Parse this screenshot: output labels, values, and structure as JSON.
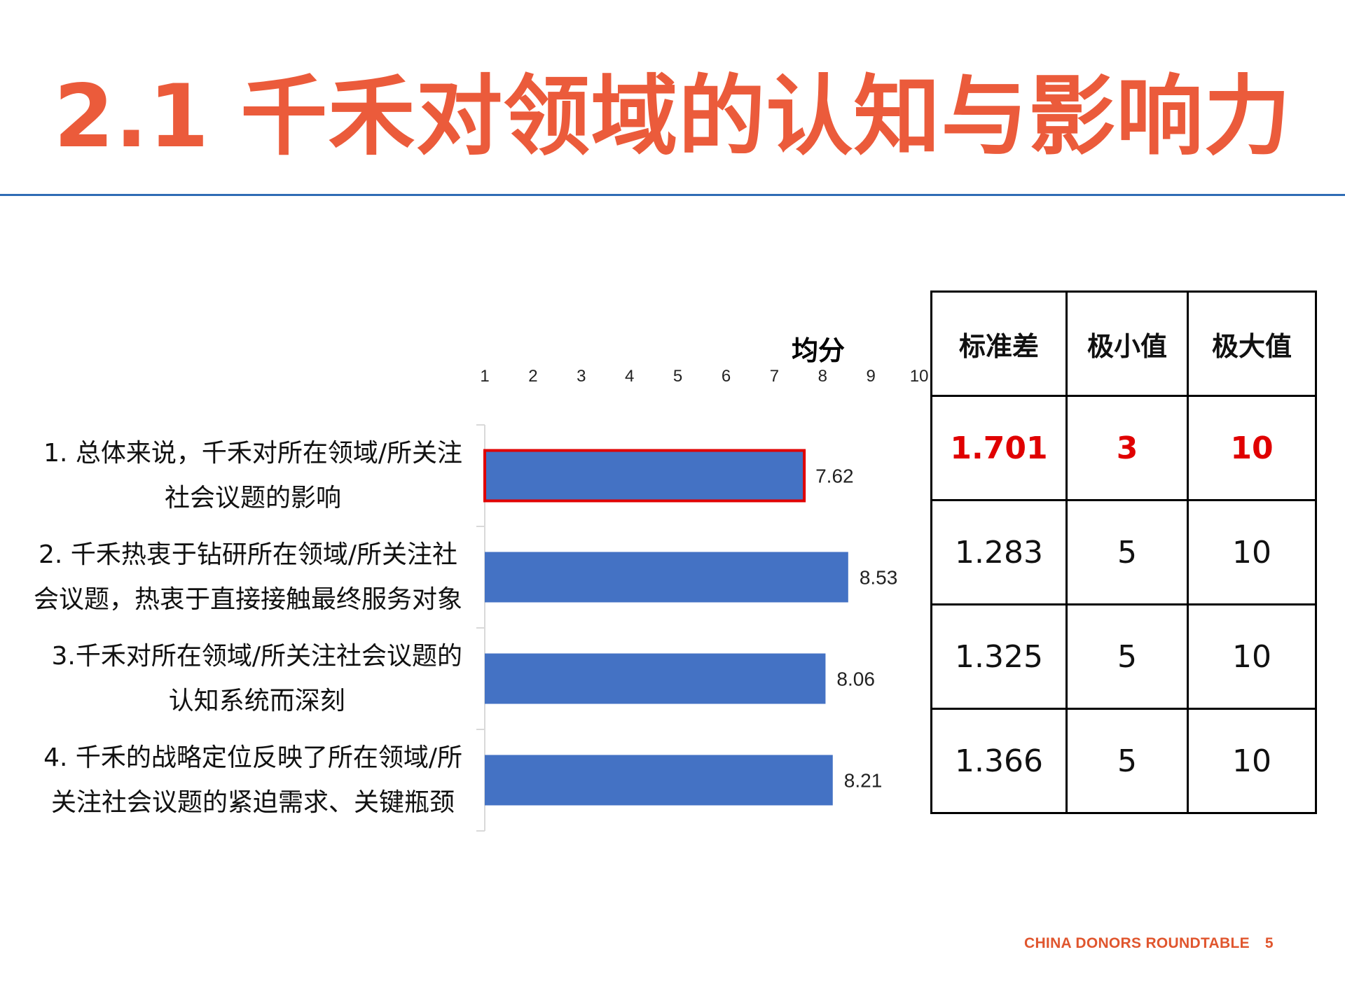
{
  "slide": {
    "title": "2.1 千禾对领域的认知与影响力",
    "footer_brand": "CHINA DONORS ROUNDTABLE",
    "page_number": "5"
  },
  "colors": {
    "title": "#EB5B3B",
    "rule": "#2F6CB5",
    "bar": "#4472C4",
    "highlight": "#E00000",
    "footer": "#E0562E"
  },
  "chart_data": {
    "type": "bar",
    "orientation": "horizontal",
    "title": "均分",
    "xlim": [
      1,
      10
    ],
    "ticks": [
      "1",
      "2",
      "3",
      "4",
      "5",
      "6",
      "7",
      "8",
      "9",
      "10"
    ],
    "tick_position": "top",
    "grid": false,
    "categories": [
      [
        "1. 总体来说，千禾对所在领域/所关注",
        "社会议题的影响"
      ],
      [
        "2. 千禾热衷于钻研所在领域/所关注社",
        "会议题，热衷于直接接触最终服务对象"
      ],
      [
        "3.千禾对所在领域/所关注社会议题的",
        "认知系统而深刻"
      ],
      [
        "4. 千禾的战略定位反映了所在领域/所",
        "关注社会议题的紧迫需求、关键瓶颈"
      ]
    ],
    "values": [
      7.62,
      8.53,
      8.06,
      8.21
    ],
    "labels": [
      "7.62",
      "8.53",
      "8.06",
      "8.21"
    ],
    "highlighted_index": 0
  },
  "stats_table": {
    "headers": [
      "标准差",
      "极小值",
      "极大值"
    ],
    "rows": [
      [
        "1.701",
        "3",
        "10"
      ],
      [
        "1.283",
        "5",
        "10"
      ],
      [
        "1.325",
        "5",
        "10"
      ],
      [
        "1.366",
        "5",
        "10"
      ]
    ]
  }
}
